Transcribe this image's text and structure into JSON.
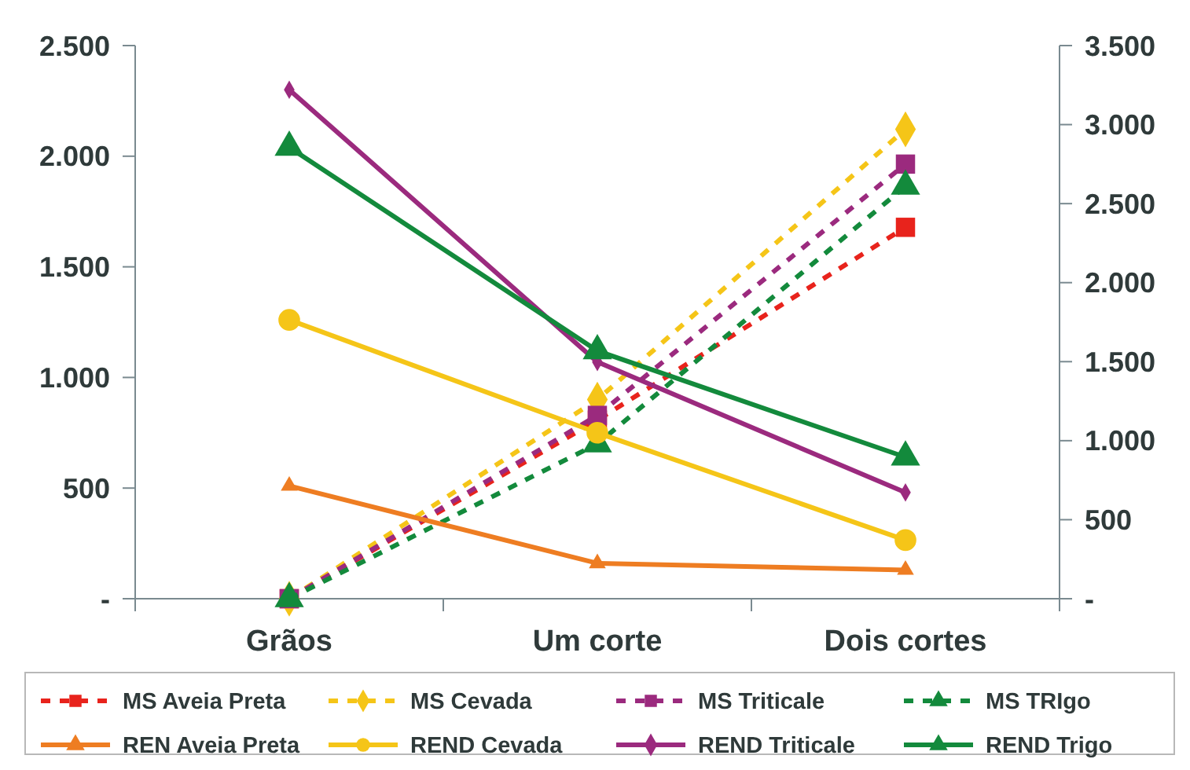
{
  "chart_data": {
    "type": "line",
    "categories": [
      "Grãos",
      "Um corte",
      "Dois cortes"
    ],
    "ylim": [
      0,
      2500
    ],
    "yticks": [
      {
        "value": 0,
        "label": "-"
      },
      {
        "value": 500,
        "label": "500"
      },
      {
        "value": 1000,
        "label": "1.000"
      },
      {
        "value": 1500,
        "label": "1.500"
      },
      {
        "value": 2000,
        "label": "2.000"
      },
      {
        "value": 2500,
        "label": "2.500"
      }
    ],
    "y2lim": [
      0,
      3500
    ],
    "y2ticks": [
      {
        "value": 0,
        "label": "-"
      },
      {
        "value": 500,
        "label": "500"
      },
      {
        "value": 1000,
        "label": "1.000"
      },
      {
        "value": 1500,
        "label": "1.500"
      },
      {
        "value": 2000,
        "label": "2.000"
      },
      {
        "value": 2500,
        "label": "2.500"
      },
      {
        "value": 3000,
        "label": "3.000"
      },
      {
        "value": 3500,
        "label": "3.500"
      }
    ],
    "grid": false,
    "legend": "bottom",
    "series": [
      {
        "name": "MS Aveia Preta",
        "color": "#e8231c",
        "values": [
          0,
          1130,
          2350
        ],
        "axis": "y2",
        "marker": "square",
        "line_style": "dashed"
      },
      {
        "name": "MS Cevada",
        "color": "#f5c518",
        "values": [
          0,
          1260,
          2970
        ],
        "axis": "y2",
        "marker": "diamond",
        "line_style": "dashed"
      },
      {
        "name": "MS Triticale",
        "color": "#9b2a7e",
        "values": [
          0,
          1160,
          2750
        ],
        "axis": "y2",
        "marker": "square",
        "line_style": "dashed"
      },
      {
        "name": "MS TRIgo",
        "color": "#138a3c",
        "values": [
          0,
          980,
          2610
        ],
        "axis": "y2",
        "marker": "triangle",
        "line_style": "dashed"
      },
      {
        "name": "REN Aveia Preta",
        "color": "#ee7d22",
        "values": [
          510,
          160,
          130
        ],
        "axis": "y",
        "marker": "triangle",
        "line_style": "solid"
      },
      {
        "name": "REND Cevada",
        "color": "#f5c518",
        "values": [
          1260,
          750,
          265
        ],
        "axis": "y",
        "marker": "circle",
        "line_style": "solid"
      },
      {
        "name": "REND Triticale",
        "color": "#9b2a7e",
        "values": [
          2300,
          1070,
          480
        ],
        "axis": "y",
        "marker": "diamond",
        "line_style": "solid"
      },
      {
        "name": "REND Trigo",
        "color": "#138a3c",
        "values": [
          2040,
          1120,
          640
        ],
        "axis": "y",
        "marker": "triangle",
        "line_style": "solid"
      }
    ]
  }
}
